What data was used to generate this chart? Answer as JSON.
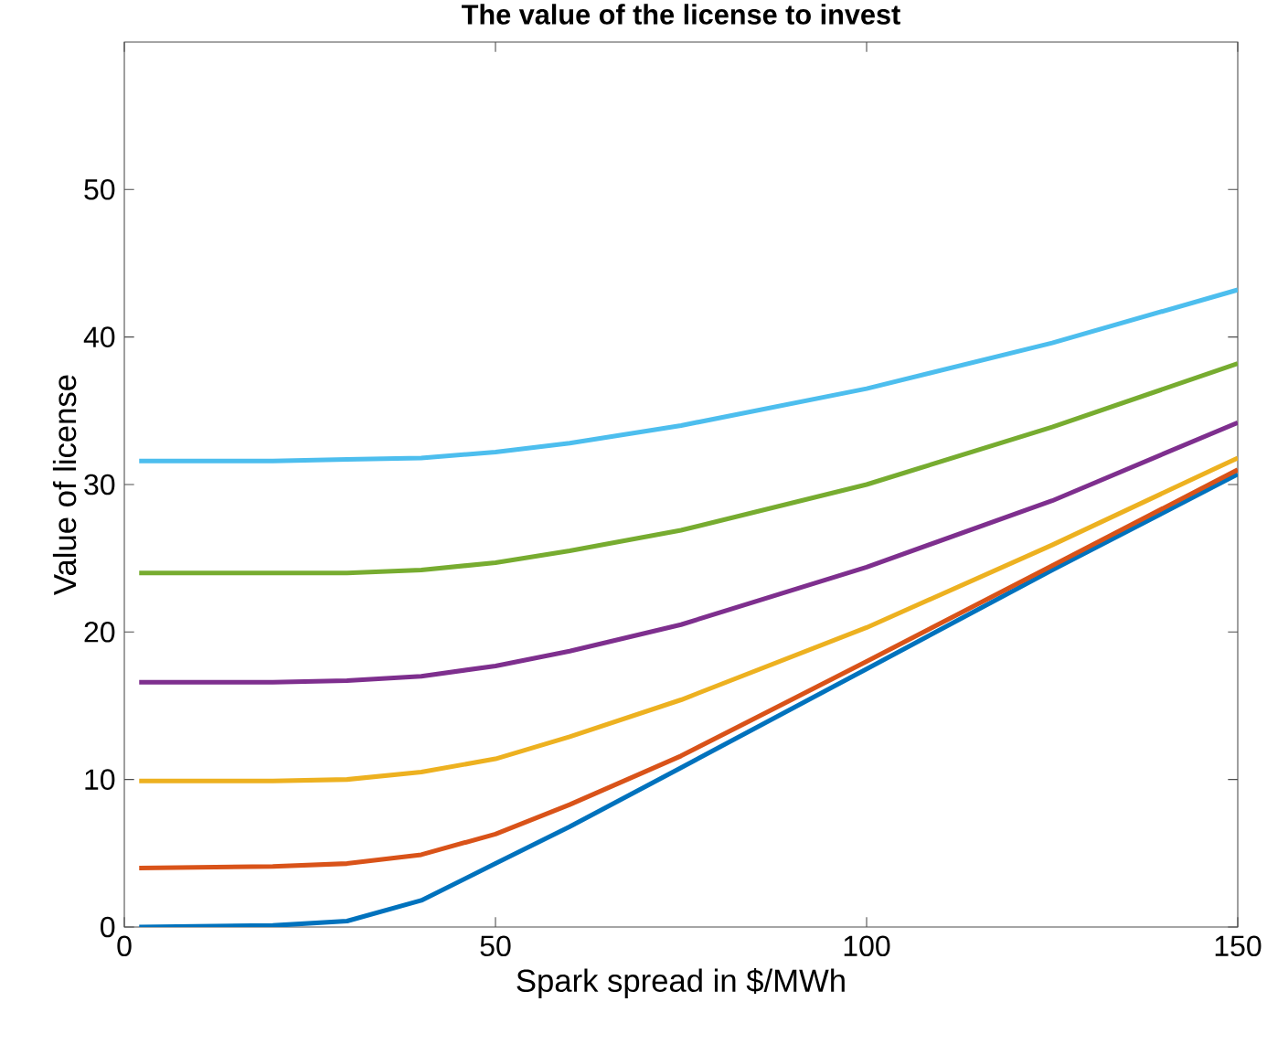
{
  "chart_data": {
    "type": "line",
    "title": "The value of the license to invest",
    "xlabel": "Spark spread in $/MWh",
    "ylabel": "Value of license",
    "xlim": [
      0,
      150
    ],
    "xticks": [
      0,
      50,
      100,
      150
    ],
    "ylim": [
      0,
      60
    ],
    "yticks": [
      0,
      10,
      20,
      30,
      40,
      50
    ],
    "grid": false,
    "marker": "none",
    "line_style": "solid",
    "x": [
      2,
      20,
      30,
      40,
      50,
      60,
      75,
      100,
      125,
      150
    ],
    "series": [
      {
        "color": "#0072bd",
        "values": [
          0,
          0.1,
          0.4,
          1.8,
          4.3,
          6.8,
          10.8,
          17.5,
          24.2,
          30.7
        ]
      },
      {
        "color": "#d95319",
        "values": [
          4,
          4.1,
          4.3,
          4.9,
          6.3,
          8.3,
          11.6,
          18,
          24.5,
          31
        ]
      },
      {
        "color": "#edb120",
        "values": [
          9.9,
          9.9,
          10,
          10.5,
          11.4,
          12.9,
          15.4,
          20.3,
          25.9,
          31.8
        ]
      },
      {
        "color": "#7e2f8e",
        "values": [
          16.6,
          16.6,
          16.7,
          17,
          17.7,
          18.7,
          20.5,
          24.4,
          28.9,
          34.2
        ]
      },
      {
        "color": "#77ac30",
        "values": [
          24,
          24,
          24,
          24.2,
          24.7,
          25.5,
          26.9,
          30,
          33.9,
          38.2
        ]
      },
      {
        "color": "#4dbeee",
        "values": [
          31.6,
          31.6,
          31.7,
          31.8,
          32.2,
          32.8,
          34,
          36.5,
          39.6,
          43.2
        ]
      }
    ]
  }
}
